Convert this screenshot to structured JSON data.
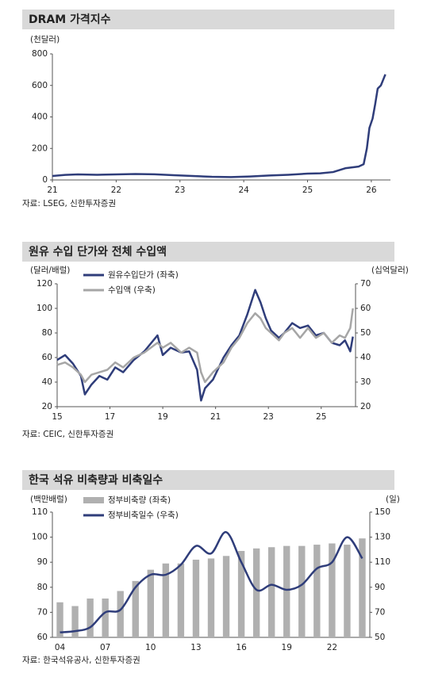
{
  "chart_data": [
    {
      "type": "line",
      "title": "DRAM 가격지수",
      "y_label": "(천달러)",
      "source": "자료: LSEG, 신한투자증권",
      "x": [
        21,
        21.2,
        21.4,
        21.7,
        22,
        22.3,
        22.6,
        22.9,
        23.2,
        23.5,
        23.8,
        24.1,
        24.4,
        24.7,
        25,
        25.2,
        25.4,
        25.6,
        25.8,
        25.88,
        25.93,
        25.97,
        26.02,
        26.06,
        26.1,
        26.15,
        26.2,
        26.22
      ],
      "values": [
        25,
        32,
        35,
        33,
        35,
        38,
        36,
        30,
        25,
        20,
        18,
        22,
        28,
        33,
        40,
        42,
        50,
        75,
        85,
        100,
        200,
        330,
        390,
        480,
        580,
        600,
        650,
        670
      ],
      "color": "#2f3d7a",
      "xlim": [
        21,
        26.3
      ],
      "ylim": [
        0,
        800
      ],
      "xticks": [
        21,
        22,
        23,
        24,
        25,
        26
      ],
      "yticks": [
        0,
        200,
        400,
        600,
        800
      ]
    },
    {
      "type": "line",
      "title": "원유 수입 단가와 전체 수입액",
      "y_label": "(달러/배럴)",
      "y2_label": "(십억달러)",
      "source": "자료: CEIC, 신한투자증권",
      "legend": "upper left",
      "x": [
        15,
        15.3,
        15.6,
        15.9,
        16.05,
        16.3,
        16.6,
        16.9,
        17.2,
        17.5,
        17.9,
        18.3,
        18.8,
        19,
        19.3,
        19.7,
        20,
        20.3,
        20.45,
        20.6,
        20.9,
        21.3,
        21.6,
        21.9,
        22.2,
        22.5,
        22.7,
        22.9,
        23.1,
        23.4,
        23.6,
        23.9,
        24.2,
        24.5,
        24.8,
        25.1,
        25.4,
        25.7,
        25.9,
        26.1,
        26.2
      ],
      "series": [
        {
          "name": "원유수입단가 (좌축)",
          "color": "#2f3d7a",
          "values": [
            58,
            62,
            55,
            45,
            30,
            38,
            45,
            42,
            52,
            48,
            58,
            65,
            78,
            62,
            68,
            64,
            65,
            50,
            25,
            35,
            42,
            60,
            70,
            78,
            95,
            115,
            105,
            92,
            82,
            76,
            80,
            88,
            84,
            86,
            78,
            80,
            72,
            70,
            74,
            65,
            77
          ]
        },
        {
          "name": "수입액 (우축)",
          "color": "#a6a6a6",
          "axis": "y2",
          "values": [
            37,
            38,
            36,
            33,
            30,
            33,
            34,
            35,
            38,
            36,
            40,
            42,
            46,
            44,
            46,
            42,
            44,
            42,
            34,
            30,
            34,
            38,
            44,
            48,
            54,
            58,
            56,
            52,
            50,
            47,
            50,
            52,
            48,
            52,
            48,
            50,
            46,
            49,
            48,
            52,
            60
          ]
        }
      ],
      "xlim": [
        15,
        26.3
      ],
      "ylim": [
        20,
        120
      ],
      "y2lim": [
        20,
        70
      ],
      "xticks": [
        15,
        17,
        19,
        21,
        23,
        25
      ],
      "yticks": [
        20,
        40,
        60,
        80,
        100,
        120
      ],
      "y2ticks": [
        20,
        30,
        40,
        50,
        60,
        70
      ]
    },
    {
      "type": "combo",
      "title": "한국 석유 비축량과 비축일수",
      "y_label": "(백만배럴)",
      "y2_label": "(일)",
      "source": "자료: 한국석유공사, 신한투자증권",
      "legend": "upper left",
      "smooth": true,
      "categories": [
        "04",
        null,
        null,
        "07",
        null,
        null,
        "10",
        null,
        null,
        "13",
        null,
        null,
        "16",
        null,
        null,
        "19",
        null,
        null,
        "22",
        null,
        null
      ],
      "series": [
        {
          "name": "정부비축량 (좌축)",
          "type": "bar",
          "color": "#b0b0b0",
          "values": [
            74,
            72.5,
            75.5,
            75.5,
            78.5,
            82.5,
            87,
            89.5,
            89.5,
            91,
            91.5,
            92.5,
            94.5,
            95.5,
            96,
            96.5,
            96.5,
            97,
            97.5,
            97,
            99.5
          ]
        },
        {
          "name": "정부비축일수 (우축)",
          "type": "line",
          "axis": "y2",
          "color": "#2f3d7a",
          "values": [
            54,
            55,
            58,
            70,
            72,
            90,
            100,
            100,
            108,
            123,
            117,
            134,
            110,
            88,
            92,
            88,
            92,
            105,
            110,
            130,
            113
          ]
        }
      ],
      "ylim": [
        60,
        110
      ],
      "y2lim": [
        50,
        150
      ],
      "yticks": [
        60,
        70,
        80,
        90,
        100,
        110
      ],
      "y2ticks": [
        50,
        70,
        90,
        110,
        130,
        150
      ]
    }
  ]
}
